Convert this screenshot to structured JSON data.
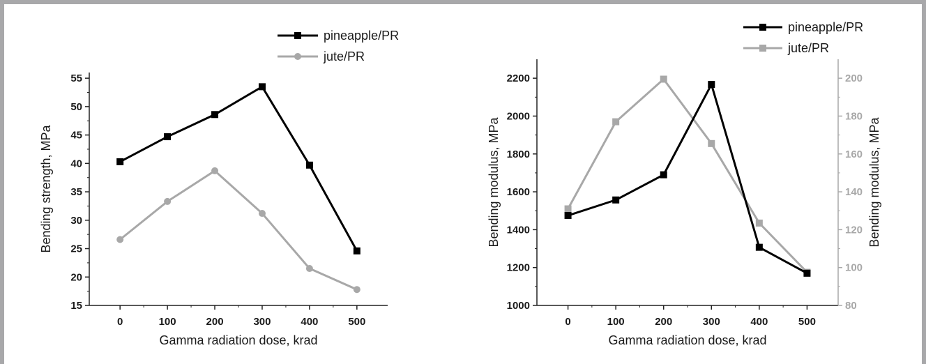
{
  "chart_data": [
    {
      "type": "line",
      "x": [
        0,
        100,
        200,
        300,
        400,
        500
      ],
      "xlabel": "Gamma radiation dose, krad",
      "ylabel": "Bending strength, MPa",
      "xlim": [
        -65,
        565
      ],
      "ylim": [
        15,
        56
      ],
      "yticks": [
        15,
        20,
        25,
        30,
        35,
        40,
        45,
        50,
        55
      ],
      "series": [
        {
          "name": "pineapple/PR",
          "values": [
            40.3,
            44.7,
            48.6,
            53.5,
            39.7,
            24.6
          ],
          "color": "#000000",
          "marker": "square"
        },
        {
          "name": "jute/PR",
          "values": [
            26.6,
            33.3,
            38.7,
            31.2,
            21.5,
            17.8
          ],
          "color": "#a8a8a8",
          "marker": "circle"
        }
      ],
      "legend": "top-right"
    },
    {
      "type": "line",
      "x": [
        0,
        100,
        200,
        300,
        400,
        500
      ],
      "xlabel": "Gamma radiation dose, krad",
      "ylabel": "Bending modulus, MPa",
      "ylabel_right": "Bending modulus, MPa",
      "xlim": [
        -65,
        565
      ],
      "ylim": [
        1000,
        2300
      ],
      "ylim_right": [
        80,
        210
      ],
      "yticks": [
        1000,
        1200,
        1400,
        1600,
        1800,
        2000,
        2200
      ],
      "yticks_right": [
        80,
        100,
        120,
        140,
        160,
        180,
        200
      ],
      "series": [
        {
          "name": "pineapple/PR",
          "axis": "left",
          "values": [
            1475,
            1557,
            1690,
            2167,
            1307,
            1170
          ],
          "color": "#000000",
          "marker": "square"
        },
        {
          "name": "jute/PR",
          "axis": "right",
          "values": [
            131,
            177,
            199.5,
            165.5,
            123.5,
            97.5
          ],
          "color": "#a8a8a8",
          "marker": "square"
        }
      ],
      "legend": "top-right"
    }
  ]
}
